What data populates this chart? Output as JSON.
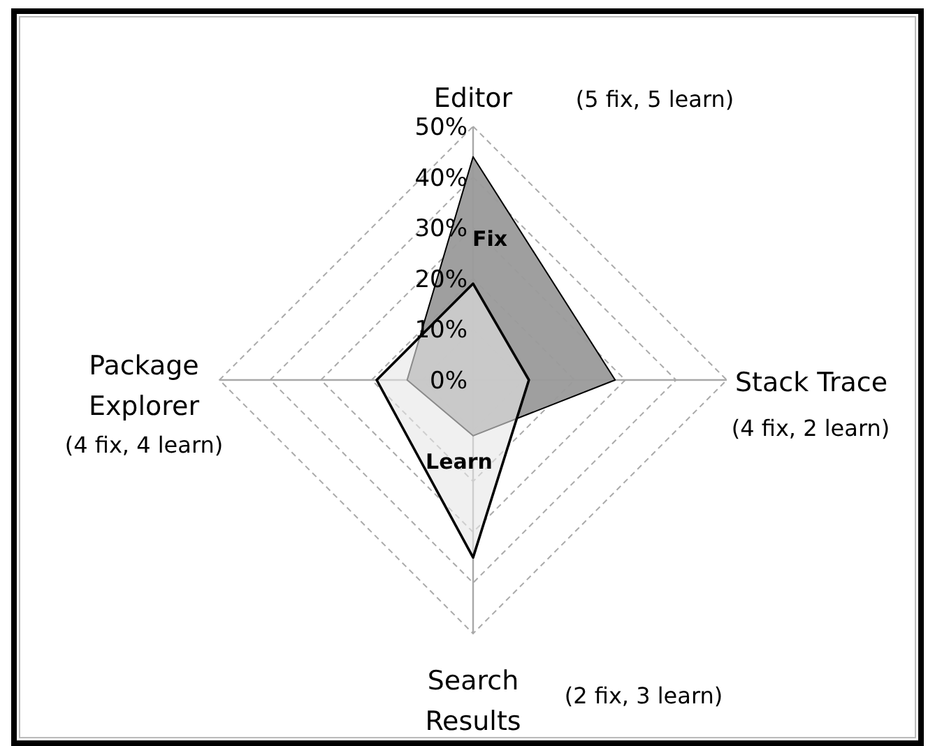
{
  "chart_data": {
    "type": "radar",
    "categories": [
      "Editor",
      "Stack Trace",
      "Search Results",
      "Package Explorer"
    ],
    "series": [
      {
        "name": "Fix",
        "color": "#9a9a9a",
        "values": [
          44,
          28,
          11,
          13
        ]
      },
      {
        "name": "Learn",
        "color": "#e6e6e6",
        "values": [
          19,
          11,
          35,
          19
        ]
      }
    ],
    "ylim": [
      0,
      50
    ],
    "yticks": [
      {
        "value": 0,
        "label": "0%"
      },
      {
        "value": 10,
        "label": "10%"
      },
      {
        "value": 20,
        "label": "20%"
      },
      {
        "value": 30,
        "label": "30%"
      },
      {
        "value": 40,
        "label": "40%"
      },
      {
        "value": 50,
        "label": "50%"
      }
    ],
    "grid": true,
    "line_style": "solid",
    "marker": "none",
    "annotations": [
      "(5 fix, 5 learn)",
      "(4 fix, 2 learn)",
      "(2 fix, 3 learn)",
      "(4 fix, 4 learn)"
    ]
  }
}
